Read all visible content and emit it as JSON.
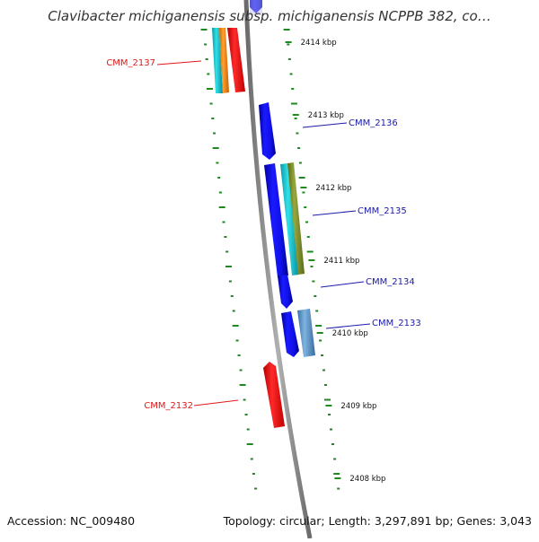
{
  "title": "Clavibacter michiganensis subsp. michiganensis NCPPB 382, co…",
  "footer": {
    "accession": "Accession: NC_009480",
    "topology": "Topology: circular; Length: 3,297,891 bp; Genes: 3,043"
  },
  "ticks": [
    "2414 kbp",
    "2413 kbp",
    "2412 kbp",
    "2411 kbp",
    "2410 kbp",
    "2409 kbp",
    "2408 kbp"
  ],
  "gene_labels": [
    {
      "text": "CMM_2137",
      "color": "#e01818"
    },
    {
      "text": "CMM_2136",
      "color": "#1a1aa8"
    },
    {
      "text": "CMM_2135",
      "color": "#1a1aa8"
    },
    {
      "text": "CMM_2134",
      "color": "#1a1aa8"
    },
    {
      "text": "CMM_2133",
      "color": "#1a1aa8"
    },
    {
      "text": "CMM_2132",
      "color": "#e01818"
    }
  ],
  "colors": {
    "backbone": "#8a8a8a",
    "dots": "#1f8a1f",
    "blue_gene": "#1010e0",
    "red_gene": "#e81010",
    "cyan": "#18c8d0",
    "orange": "#f08a10",
    "olive": "#7a8a2a",
    "steel": "#5a90c0"
  }
}
